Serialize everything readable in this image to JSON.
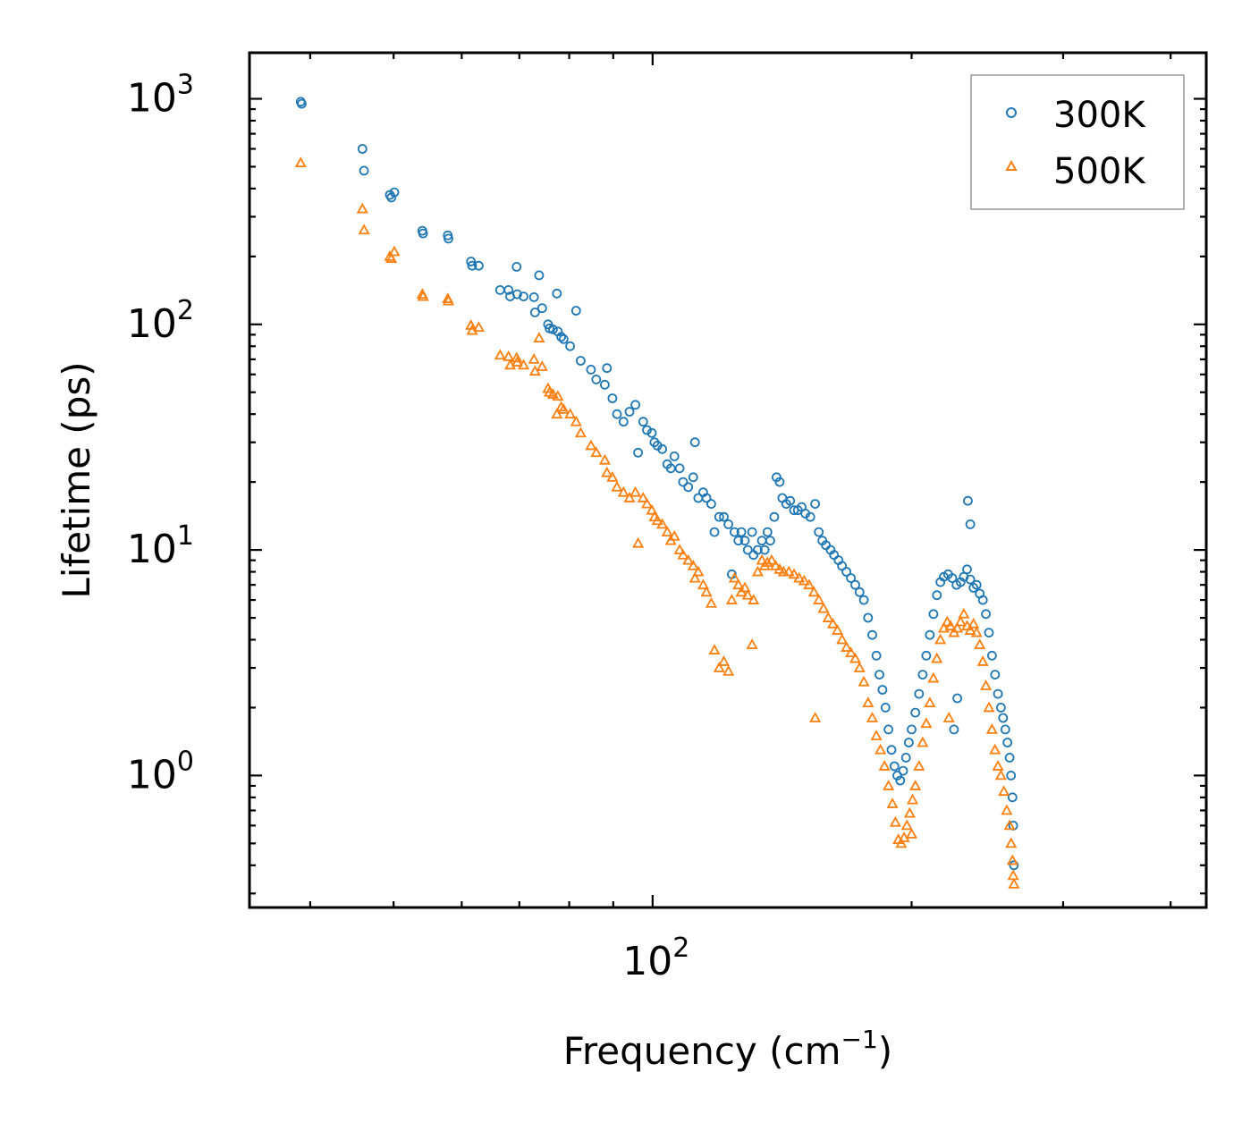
{
  "chart_data": {
    "type": "scatter",
    "title": "",
    "xlabel": "Frequency (cm",
    "xlabel_sup": "−1",
    "xlabel_end": ")",
    "ylabel": "Lifetime (ps)",
    "x_scale": "log",
    "y_scale": "log",
    "xlim": [
      34,
      440
    ],
    "ylim": [
      0.26,
      1600
    ],
    "x_ticks": [
      {
        "base": "10",
        "exp": "2",
        "value": 100
      }
    ],
    "y_ticks": [
      {
        "base": "10",
        "exp": "0",
        "value": 1
      },
      {
        "base": "10",
        "exp": "1",
        "value": 10
      },
      {
        "base": "10",
        "exp": "2",
        "value": 100
      },
      {
        "base": "10",
        "exp": "3",
        "value": 1000
      }
    ],
    "legend_position": "top-right",
    "series": [
      {
        "name": "300K",
        "marker": "circle",
        "color": "#1f77b4",
        "points": [
          [
            39.0,
            970
          ],
          [
            39.1,
            950
          ],
          [
            46.0,
            600
          ],
          [
            46.2,
            480
          ],
          [
            49.5,
            375
          ],
          [
            49.7,
            365
          ],
          [
            50.1,
            385
          ],
          [
            54.0,
            260
          ],
          [
            54.1,
            253
          ],
          [
            57.8,
            248
          ],
          [
            57.9,
            240
          ],
          [
            61.5,
            190
          ],
          [
            61.7,
            182
          ],
          [
            62.8,
            182
          ],
          [
            66.5,
            142
          ],
          [
            68.0,
            142
          ],
          [
            68.3,
            133
          ],
          [
            69.5,
            180
          ],
          [
            69.6,
            136
          ],
          [
            70.8,
            133
          ],
          [
            72.8,
            132
          ],
          [
            73.0,
            113
          ],
          [
            73.8,
            165
          ],
          [
            74.4,
            118
          ],
          [
            75.6,
            100
          ],
          [
            75.9,
            96
          ],
          [
            76.6,
            95
          ],
          [
            77.4,
            137
          ],
          [
            77.6,
            93
          ],
          [
            78.3,
            88
          ],
          [
            78.8,
            86
          ],
          [
            80.2,
            80
          ],
          [
            81.5,
            115
          ],
          [
            82.5,
            69
          ],
          [
            84.8,
            63
          ],
          [
            86.0,
            57
          ],
          [
            88.0,
            54
          ],
          [
            88.5,
            64
          ],
          [
            89.8,
            47
          ],
          [
            90.9,
            40
          ],
          [
            92.5,
            37
          ],
          [
            94.0,
            41
          ],
          [
            95.5,
            44
          ],
          [
            96.2,
            27
          ],
          [
            97.5,
            37
          ],
          [
            98.5,
            34
          ],
          [
            99.8,
            33
          ],
          [
            100.5,
            30
          ],
          [
            101.3,
            29
          ],
          [
            102.6,
            28
          ],
          [
            104.0,
            24
          ],
          [
            105.0,
            23
          ],
          [
            106.0,
            26
          ],
          [
            107.5,
            23
          ],
          [
            108.5,
            20
          ],
          [
            110.0,
            19
          ],
          [
            111.5,
            21
          ],
          [
            112.0,
            30
          ],
          [
            113.0,
            17
          ],
          [
            114.5,
            18
          ],
          [
            115.5,
            17
          ],
          [
            117.0,
            16
          ],
          [
            118.0,
            12
          ],
          [
            119.5,
            14
          ],
          [
            121.0,
            14
          ],
          [
            122.5,
            13
          ],
          [
            123.6,
            7.8
          ],
          [
            124.5,
            12
          ],
          [
            125.8,
            11
          ],
          [
            126.8,
            12
          ],
          [
            128.0,
            11
          ],
          [
            129.0,
            10
          ],
          [
            130.5,
            12
          ],
          [
            131.0,
            9.5
          ],
          [
            132.5,
            10
          ],
          [
            134.0,
            11
          ],
          [
            135.0,
            10
          ],
          [
            136.0,
            12
          ],
          [
            137.0,
            11
          ],
          [
            138.5,
            14
          ],
          [
            139.3,
            21
          ],
          [
            140.5,
            20
          ],
          [
            141.5,
            17
          ],
          [
            143.0,
            16
          ],
          [
            144.5,
            16.5
          ],
          [
            146.0,
            15
          ],
          [
            147.5,
            15
          ],
          [
            149.0,
            15.5
          ],
          [
            150.5,
            14.5
          ],
          [
            152.5,
            14
          ],
          [
            154.5,
            16
          ],
          [
            156.0,
            12
          ],
          [
            157.5,
            11
          ],
          [
            159.0,
            10.5
          ],
          [
            161.0,
            10
          ],
          [
            162.5,
            9.5
          ],
          [
            164.5,
            9
          ],
          [
            166.0,
            8.5
          ],
          [
            168.0,
            8
          ],
          [
            170.0,
            7.5
          ],
          [
            172.0,
            7
          ],
          [
            174.0,
            6.5
          ],
          [
            176.0,
            6
          ],
          [
            178.0,
            5
          ],
          [
            180.0,
            4.2
          ],
          [
            182.0,
            3.4
          ],
          [
            183.5,
            2.8
          ],
          [
            185.0,
            2.4
          ],
          [
            186.5,
            2.0
          ],
          [
            188.0,
            1.6
          ],
          [
            189.5,
            1.3
          ],
          [
            191.0,
            1.1
          ],
          [
            192.5,
            1.0
          ],
          [
            194.0,
            0.95
          ],
          [
            195.5,
            1.05
          ],
          [
            197.0,
            1.2
          ],
          [
            198.5,
            1.4
          ],
          [
            200.0,
            1.6
          ],
          [
            202.0,
            1.9
          ],
          [
            204.0,
            2.3
          ],
          [
            206.0,
            2.8
          ],
          [
            208.0,
            3.4
          ],
          [
            210.0,
            4.2
          ],
          [
            212.0,
            5.2
          ],
          [
            214.0,
            6.3
          ],
          [
            216.0,
            7.2
          ],
          [
            218.0,
            7.6
          ],
          [
            220.5,
            7.8
          ],
          [
            223.0,
            7.5
          ],
          [
            225.5,
            7.0
          ],
          [
            228.0,
            7.2
          ],
          [
            230.0,
            7.6
          ],
          [
            232.0,
            8.2
          ],
          [
            234.0,
            7.4
          ],
          [
            236.0,
            6.8
          ],
          [
            238.0,
            7.0
          ],
          [
            240.0,
            6.4
          ],
          [
            242.0,
            6.0
          ],
          [
            244.0,
            5.2
          ],
          [
            246.0,
            4.3
          ],
          [
            248.0,
            3.4
          ],
          [
            250.0,
            2.8
          ],
          [
            252.0,
            2.3
          ],
          [
            254.0,
            2.0
          ],
          [
            255.5,
            1.8
          ],
          [
            257.0,
            1.6
          ],
          [
            258.5,
            1.4
          ],
          [
            260.0,
            1.2
          ],
          [
            261.0,
            1.0
          ],
          [
            262.0,
            0.8
          ],
          [
            262.5,
            0.6
          ],
          [
            263.0,
            0.4
          ],
          [
            226.0,
            2.2
          ],
          [
            224.0,
            1.6
          ],
          [
            232.5,
            16.5
          ],
          [
            234.0,
            13.0
          ]
        ]
      },
      {
        "name": "500K",
        "marker": "triangle",
        "color": "#ff7f0e",
        "points": [
          [
            39.0,
            520
          ],
          [
            46.0,
            325
          ],
          [
            46.2,
            262
          ],
          [
            49.5,
            200
          ],
          [
            49.7,
            196
          ],
          [
            50.1,
            210
          ],
          [
            54.0,
            136
          ],
          [
            54.1,
            133
          ],
          [
            57.8,
            130
          ],
          [
            57.9,
            127
          ],
          [
            61.5,
            99
          ],
          [
            61.7,
            94
          ],
          [
            62.8,
            97
          ],
          [
            66.5,
            73
          ],
          [
            68.0,
            72
          ],
          [
            68.3,
            66
          ],
          [
            69.5,
            71
          ],
          [
            69.6,
            68
          ],
          [
            70.8,
            66
          ],
          [
            72.8,
            70
          ],
          [
            73.0,
            62
          ],
          [
            73.8,
            87
          ],
          [
            74.4,
            65
          ],
          [
            75.6,
            52
          ],
          [
            75.9,
            50
          ],
          [
            76.6,
            49
          ],
          [
            77.4,
            40
          ],
          [
            77.6,
            48
          ],
          [
            78.3,
            43
          ],
          [
            78.8,
            42
          ],
          [
            80.2,
            40
          ],
          [
            81.5,
            37
          ],
          [
            82.5,
            33
          ],
          [
            84.8,
            29
          ],
          [
            86.0,
            27
          ],
          [
            88.0,
            25
          ],
          [
            88.5,
            22
          ],
          [
            89.8,
            21
          ],
          [
            90.9,
            19
          ],
          [
            92.5,
            18
          ],
          [
            94.0,
            17
          ],
          [
            95.5,
            18
          ],
          [
            96.2,
            10.7
          ],
          [
            97.5,
            17
          ],
          [
            98.5,
            16
          ],
          [
            99.8,
            15
          ],
          [
            100.5,
            14
          ],
          [
            101.3,
            13.5
          ],
          [
            102.6,
            13
          ],
          [
            104.0,
            12
          ],
          [
            105.0,
            11
          ],
          [
            106.0,
            11.5
          ],
          [
            107.5,
            10
          ],
          [
            108.5,
            9.5
          ],
          [
            110.0,
            9
          ],
          [
            111.5,
            8.5
          ],
          [
            112.0,
            7.5
          ],
          [
            113.0,
            8
          ],
          [
            114.5,
            7
          ],
          [
            115.5,
            6.5
          ],
          [
            117.0,
            5.8
          ],
          [
            118.0,
            3.6
          ],
          [
            119.5,
            3.0
          ],
          [
            121.0,
            3.2
          ],
          [
            122.5,
            2.9
          ],
          [
            123.6,
            6.0
          ],
          [
            124.5,
            7.5
          ],
          [
            125.8,
            7.0
          ],
          [
            126.8,
            6.5
          ],
          [
            128.0,
            6.8
          ],
          [
            129.0,
            6.3
          ],
          [
            130.5,
            3.8
          ],
          [
            131.0,
            6.0
          ],
          [
            132.5,
            8.0
          ],
          [
            134.0,
            9.0
          ],
          [
            135.0,
            8.5
          ],
          [
            136.0,
            8.8
          ],
          [
            137.5,
            9.0
          ],
          [
            139.0,
            8.5
          ],
          [
            140.5,
            8.2
          ],
          [
            142.0,
            8.0
          ],
          [
            144.0,
            8.0
          ],
          [
            146.0,
            7.8
          ],
          [
            148.0,
            7.5
          ],
          [
            150.0,
            7.3
          ],
          [
            152.0,
            7.0
          ],
          [
            154.0,
            6.5
          ],
          [
            156.0,
            6.0
          ],
          [
            158.0,
            5.5
          ],
          [
            160.0,
            5.0
          ],
          [
            162.0,
            4.7
          ],
          [
            164.0,
            4.4
          ],
          [
            166.0,
            4.0
          ],
          [
            168.0,
            3.7
          ],
          [
            170.0,
            3.5
          ],
          [
            172.0,
            3.3
          ],
          [
            174.0,
            3.0
          ],
          [
            176.0,
            2.6
          ],
          [
            178.0,
            2.1
          ],
          [
            180.0,
            1.8
          ],
          [
            182.0,
            1.5
          ],
          [
            184.0,
            1.3
          ],
          [
            186.0,
            1.1
          ],
          [
            188.0,
            0.9
          ],
          [
            190.0,
            0.75
          ],
          [
            191.5,
            0.62
          ],
          [
            193.0,
            0.52
          ],
          [
            194.5,
            0.5
          ],
          [
            196.0,
            0.53
          ],
          [
            197.5,
            0.6
          ],
          [
            199.0,
            0.68
          ],
          [
            200.5,
            0.78
          ],
          [
            202.0,
            0.9
          ],
          [
            204.0,
            1.1
          ],
          [
            206.0,
            1.4
          ],
          [
            208.0,
            1.7
          ],
          [
            210.0,
            2.1
          ],
          [
            212.0,
            2.7
          ],
          [
            214.0,
            3.3
          ],
          [
            216.0,
            4.0
          ],
          [
            218.0,
            4.5
          ],
          [
            220.0,
            4.8
          ],
          [
            222.0,
            4.6
          ],
          [
            224.0,
            4.3
          ],
          [
            226.0,
            4.5
          ],
          [
            228.0,
            4.8
          ],
          [
            230.0,
            5.2
          ],
          [
            232.0,
            4.6
          ],
          [
            234.0,
            4.4
          ],
          [
            236.0,
            4.7
          ],
          [
            238.0,
            4.3
          ],
          [
            240.0,
            3.8
          ],
          [
            242.0,
            3.2
          ],
          [
            244.0,
            2.5
          ],
          [
            246.0,
            2.0
          ],
          [
            248.0,
            1.6
          ],
          [
            250.0,
            1.3
          ],
          [
            252.0,
            1.1
          ],
          [
            254.0,
            1.0
          ],
          [
            256.0,
            0.85
          ],
          [
            258.0,
            0.7
          ],
          [
            260.0,
            0.6
          ],
          [
            261.0,
            0.5
          ],
          [
            262.0,
            0.42
          ],
          [
            262.5,
            0.36
          ],
          [
            263.0,
            0.33
          ],
          [
            154.5,
            1.8
          ],
          [
            200.0,
            0.55
          ],
          [
            221.0,
            1.8
          ]
        ]
      }
    ]
  }
}
